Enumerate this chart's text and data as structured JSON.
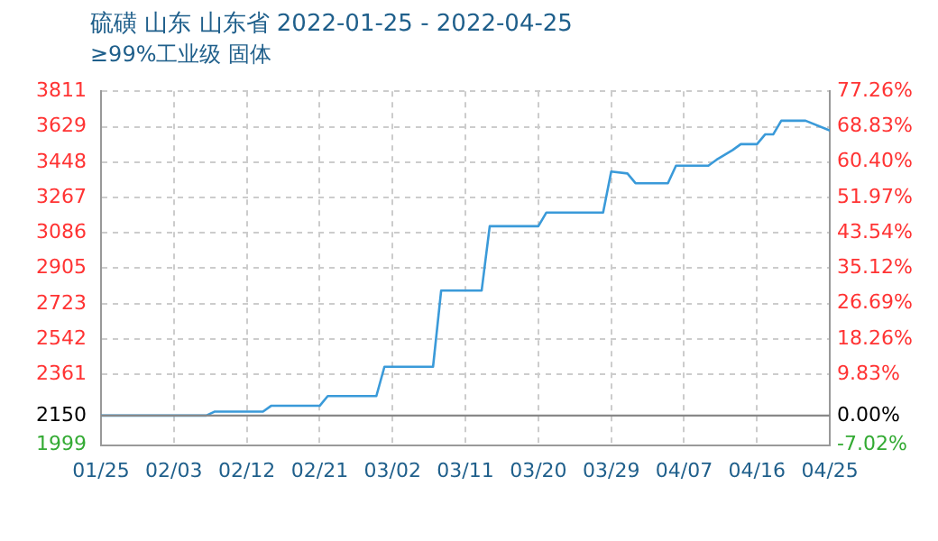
{
  "chart_data": {
    "type": "line",
    "title": "硫磺 山东 山东省 2022-01-25 - 2022-04-25",
    "subtitle": "≥99%工业级 固体",
    "x": [
      "2022-01-25",
      "2022-02-07",
      "2022-02-08",
      "2022-02-14",
      "2022-02-15",
      "2022-02-21",
      "2022-02-22",
      "2022-02-28",
      "2022-03-01",
      "2022-03-07",
      "2022-03-08",
      "2022-03-13",
      "2022-03-14",
      "2022-03-20",
      "2022-03-21",
      "2022-03-28",
      "2022-03-29",
      "2022-03-31",
      "2022-04-01",
      "2022-04-05",
      "2022-04-06",
      "2022-04-10",
      "2022-04-11",
      "2022-04-13",
      "2022-04-14",
      "2022-04-16",
      "2022-04-17",
      "2022-04-18",
      "2022-04-19",
      "2022-04-22",
      "2022-04-25"
    ],
    "series": [
      {
        "color": "#3a9ad9",
        "values": [
          2150,
          2150,
          2170,
          2170,
          2200,
          2200,
          2250,
          2250,
          2400,
          2400,
          2790,
          2790,
          3120,
          3120,
          3190,
          3190,
          3400,
          3390,
          3340,
          3340,
          3430,
          3430,
          3460,
          3510,
          3540,
          3540,
          3590,
          3590,
          3660,
          3660,
          3610
        ]
      }
    ],
    "xlim": [
      "2022-01-25",
      "2022-04-25"
    ],
    "xticks": [
      {
        "value": "2022-01-25",
        "label": "01/25"
      },
      {
        "value": "2022-02-03",
        "label": "02/03"
      },
      {
        "value": "2022-02-12",
        "label": "02/12"
      },
      {
        "value": "2022-02-21",
        "label": "02/21"
      },
      {
        "value": "2022-03-02",
        "label": "03/02"
      },
      {
        "value": "2022-03-11",
        "label": "03/11"
      },
      {
        "value": "2022-03-20",
        "label": "03/20"
      },
      {
        "value": "2022-03-29",
        "label": "03/29"
      },
      {
        "value": "2022-04-07",
        "label": "04/07"
      },
      {
        "value": "2022-04-16",
        "label": "04/16"
      },
      {
        "value": "2022-04-25",
        "label": "04/25"
      }
    ],
    "ylim": [
      1999,
      3811
    ],
    "yticks": [
      1999,
      2150,
      2361,
      2542,
      2723,
      2905,
      3086,
      3267,
      3448,
      3629,
      3811
    ],
    "y2lim": [
      -7.02,
      77.26
    ],
    "y2ticks": [
      {
        "value": -7.02,
        "label": "-7.02%"
      },
      {
        "value": 0,
        "label": "0.00%"
      },
      {
        "value": 9.83,
        "label": "9.83%"
      },
      {
        "value": 18.26,
        "label": "18.26%"
      },
      {
        "value": 26.69,
        "label": "26.69%"
      },
      {
        "value": 35.12,
        "label": "35.12%"
      },
      {
        "value": 43.54,
        "label": "43.54%"
      },
      {
        "value": 51.97,
        "label": "51.97%"
      },
      {
        "value": 60.4,
        "label": "60.40%"
      },
      {
        "value": 68.83,
        "label": "68.83%"
      },
      {
        "value": 77.26,
        "label": "77.26%"
      }
    ],
    "ref_lines": [
      {
        "axis": "y",
        "value": 2150,
        "color": "#888888"
      }
    ],
    "grid": true,
    "legend": false,
    "marker": "none",
    "line_style": "solid"
  }
}
